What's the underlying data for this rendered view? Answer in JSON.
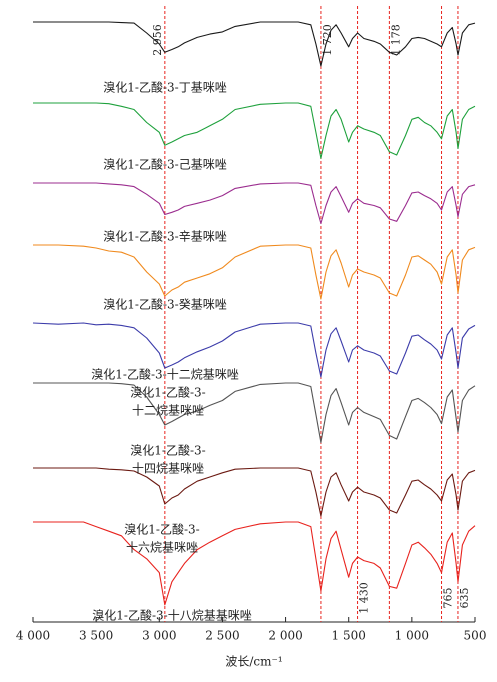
{
  "chart_data": {
    "type": "line",
    "x_label": "波长/cm⁻¹",
    "xlim": [
      4000,
      500
    ],
    "xticks": [
      {
        "value": 4000,
        "label": "4 000"
      },
      {
        "value": 3500,
        "label": "3 500"
      },
      {
        "value": 3000,
        "label": "3 000"
      },
      {
        "value": 2500,
        "label": "2 500"
      },
      {
        "value": 2000,
        "label": "2 000"
      },
      {
        "value": 1500,
        "label": "1 500"
      },
      {
        "value": 1000,
        "label": "1 000"
      },
      500
    ],
    "reference_lines": [
      {
        "value": 2956,
        "label": "2 956"
      },
      {
        "value": 1720,
        "label": "1 720"
      },
      {
        "value": 1178,
        "label": "1 178"
      },
      {
        "value": 1430,
        "label": "1 430"
      },
      {
        "value": 765,
        "label": "765"
      },
      {
        "value": 635,
        "label": "635"
      }
    ],
    "reference_color": "#e8231e",
    "x": [
      4000,
      3800,
      3600,
      3500,
      3400,
      3300,
      3200,
      3100,
      3000,
      2956,
      2900,
      2850,
      2800,
      2700,
      2600,
      2500,
      2400,
      2200,
      2000,
      1900,
      1800,
      1760,
      1720,
      1680,
      1640,
      1600,
      1560,
      1500,
      1470,
      1430,
      1380,
      1300,
      1250,
      1178,
      1120,
      1050,
      1000,
      950,
      900,
      850,
      800,
      765,
      720,
      680,
      650,
      635,
      600,
      550,
      500
    ],
    "series": [
      {
        "name": "溴化1-乙酸-3-丁基咪唑",
        "color": "#1a1a1a",
        "values": [
          100,
          100,
          100,
          100,
          100,
          99,
          98,
          80,
          60,
          45,
          50,
          55,
          62,
          72,
          78,
          82,
          92,
          100,
          100,
          100,
          95,
          60,
          20,
          60,
          85,
          95,
          80,
          55,
          70,
          80,
          70,
          65,
          60,
          45,
          40,
          55,
          70,
          72,
          70,
          65,
          60,
          55,
          80,
          90,
          60,
          40,
          80,
          95,
          98
        ]
      },
      {
        "name": "溴化1-乙酸-3-己基咪唑",
        "color": "#1ea13c",
        "values": [
          100,
          100,
          100,
          100,
          99,
          95,
          90,
          70,
          55,
          35,
          40,
          45,
          50,
          55,
          65,
          75,
          90,
          98,
          100,
          100,
          95,
          55,
          15,
          50,
          80,
          90,
          75,
          40,
          55,
          65,
          60,
          55,
          50,
          25,
          20,
          50,
          75,
          78,
          70,
          65,
          55,
          45,
          80,
          90,
          55,
          30,
          75,
          90,
          95
        ]
      },
      {
        "name": "溴化1-乙酸-3-辛基咪唑",
        "color": "#9b2d8f",
        "values": [
          100,
          100,
          100,
          100,
          98,
          96,
          92,
          75,
          55,
          30,
          35,
          40,
          48,
          55,
          62,
          72,
          88,
          98,
          100,
          100,
          95,
          50,
          10,
          50,
          80,
          92,
          70,
          35,
          55,
          65,
          55,
          50,
          45,
          20,
          15,
          50,
          78,
          80,
          72,
          65,
          55,
          40,
          80,
          92,
          50,
          25,
          75,
          92,
          96
        ]
      },
      {
        "name": "溴化1-乙酸-3-癸基咪唑",
        "color": "#f08a1e",
        "values": [
          100,
          100,
          98,
          95,
          90,
          88,
          80,
          55,
          35,
          15,
          25,
          30,
          38,
          45,
          52,
          62,
          80,
          98,
          100,
          100,
          95,
          50,
          10,
          55,
          82,
          92,
          70,
          30,
          50,
          60,
          55,
          50,
          45,
          20,
          15,
          50,
          80,
          82,
          75,
          68,
          55,
          35,
          80,
          92,
          50,
          20,
          75,
          92,
          96
        ]
      },
      {
        "name": "溴化1-乙酸-3-十二烷基咪唑",
        "color": "#3c3caa",
        "values": [
          100,
          98,
          100,
          97,
          98,
          96,
          92,
          75,
          50,
          25,
          30,
          35,
          42,
          52,
          60,
          70,
          85,
          98,
          100,
          100,
          95,
          50,
          10,
          55,
          82,
          92,
          70,
          35,
          55,
          62,
          55,
          50,
          45,
          20,
          15,
          50,
          78,
          80,
          72,
          65,
          55,
          40,
          80,
          92,
          50,
          25,
          75,
          90,
          96
        ]
      },
      {
        "name": [
          "溴化1-乙酸-3-",
          "十二烷基咪唑"
        ],
        "color": "#555555",
        "values": [
          100,
          100,
          100,
          100,
          100,
          99,
          97,
          80,
          55,
          40,
          45,
          50,
          55,
          60,
          68,
          75,
          88,
          98,
          100,
          100,
          95,
          55,
          15,
          55,
          82,
          92,
          72,
          40,
          58,
          65,
          58,
          52,
          48,
          25,
          20,
          52,
          75,
          78,
          72,
          65,
          55,
          42,
          80,
          90,
          50,
          30,
          75,
          90,
          96
        ]
      },
      {
        "name": [
          "溴化1-乙酸-3-",
          "十四烷基咪唑"
        ],
        "color": "#6b1a12",
        "values": [
          100,
          100,
          100,
          100,
          98,
          97,
          95,
          85,
          70,
          40,
          50,
          55,
          65,
          78,
          85,
          92,
          98,
          100,
          100,
          100,
          95,
          60,
          20,
          60,
          85,
          92,
          72,
          45,
          60,
          68,
          60,
          55,
          50,
          30,
          25,
          55,
          78,
          80,
          72,
          65,
          55,
          45,
          80,
          90,
          55,
          30,
          78,
          92,
          96
        ]
      },
      {
        "name": [
          "溴化1-乙酸-3-",
          "十六烷基咪唑"
        ],
        "color": "#e8231e",
        "values": [
          100,
          100,
          100,
          95,
          90,
          85,
          70,
          60,
          45,
          10,
          35,
          45,
          55,
          70,
          78,
          85,
          92,
          98,
          100,
          100,
          95,
          60,
          25,
          60,
          82,
          90,
          70,
          40,
          55,
          62,
          58,
          55,
          50,
          30,
          28,
          55,
          75,
          78,
          72,
          65,
          55,
          45,
          78,
          88,
          55,
          35,
          75,
          90,
          96
        ]
      }
    ],
    "bottom_label": "溴化1-乙酸-3-十八烷基基咪唑"
  }
}
